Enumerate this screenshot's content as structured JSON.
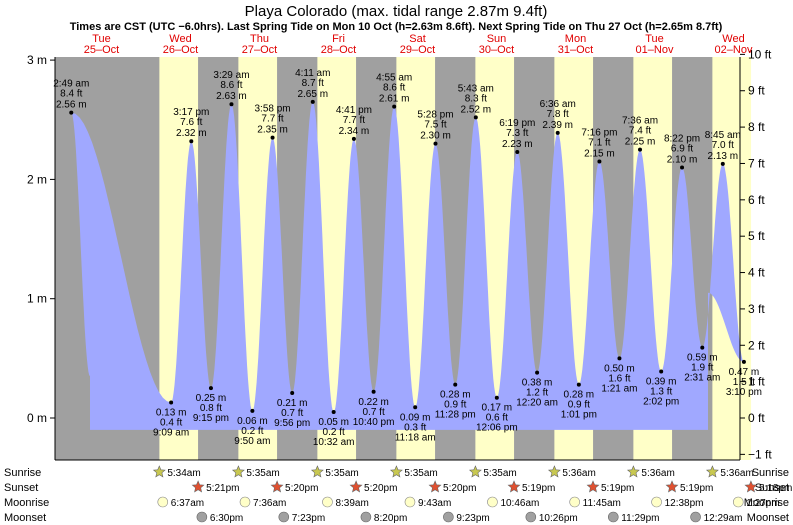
{
  "chart_data": {
    "type": "area",
    "title": "Playa Colorado (max. tidal range 2.87m 9.4ft)",
    "subtitle": "Times are CST (UTC −6.0hrs). Last Spring Tide on Mon 10 Oct (h=2.63m 8.6ft). Next Spring Tide on Thu 27 Oct (h=2.65m 8.7ft)",
    "days": [
      {
        "dow": "Tue",
        "date": "25–Oct"
      },
      {
        "dow": "Wed",
        "date": "26–Oct"
      },
      {
        "dow": "Thu",
        "date": "27–Oct"
      },
      {
        "dow": "Fri",
        "date": "28–Oct"
      },
      {
        "dow": "Sat",
        "date": "29–Oct"
      },
      {
        "dow": "Sun",
        "date": "30–Oct"
      },
      {
        "dow": "Mon",
        "date": "31–Oct"
      },
      {
        "dow": "Tue",
        "date": "01–Nov"
      },
      {
        "dow": "Wed",
        "date": "02–Nov"
      }
    ],
    "y_left_ticks": [
      {
        "v": 0,
        "label": "0 m"
      },
      {
        "v": 1,
        "label": "1 m"
      },
      {
        "v": 2,
        "label": "2 m"
      },
      {
        "v": 3,
        "label": "3 m"
      }
    ],
    "y_right_ticks": [
      {
        "ft": -1,
        "label": "−1 ft"
      },
      {
        "ft": 0,
        "label": "0 ft"
      },
      {
        "ft": 1,
        "label": "1 ft"
      },
      {
        "ft": 2,
        "label": "2 ft"
      },
      {
        "ft": 3,
        "label": "3 ft"
      },
      {
        "ft": 4,
        "label": "4 ft"
      },
      {
        "ft": 5,
        "label": "5 ft"
      },
      {
        "ft": 6,
        "label": "6 ft"
      },
      {
        "ft": 7,
        "label": "7 ft"
      },
      {
        "ft": 8,
        "label": "8 ft"
      },
      {
        "ft": 9,
        "label": "9 ft"
      },
      {
        "ft": 10,
        "label": "10 ft"
      }
    ],
    "ylim_m": [
      -0.35,
      3.05
    ],
    "tides": [
      {
        "type": "high",
        "day": 0,
        "time": "2:49 am",
        "ft": "8.4 ft",
        "m": 2.56,
        "m_label": "2.56 m"
      },
      {
        "type": "low",
        "day": 1,
        "time": "9:09 am",
        "ft": "0.4 ft",
        "m": 0.13,
        "m_label": "0.13 m"
      },
      {
        "type": "high",
        "day": 1,
        "time": "3:17 pm",
        "ft": "7.6 ft",
        "m": 2.32,
        "m_label": "2.32 m"
      },
      {
        "type": "low",
        "day": 1,
        "time": "9:15 pm",
        "ft": "0.8 ft",
        "m": 0.25,
        "m_label": "0.25 m"
      },
      {
        "type": "high",
        "day": 2,
        "time": "3:29 am",
        "ft": "8.6 ft",
        "m": 2.63,
        "m_label": "2.63 m"
      },
      {
        "type": "low",
        "day": 2,
        "time": "9:50 am",
        "ft": "0.2 ft",
        "m": 0.06,
        "m_label": "0.06 m"
      },
      {
        "type": "high",
        "day": 2,
        "time": "3:58 pm",
        "ft": "7.7 ft",
        "m": 2.35,
        "m_label": "2.35 m"
      },
      {
        "type": "low",
        "day": 2,
        "time": "9:56 pm",
        "ft": "0.7 ft",
        "m": 0.21,
        "m_label": "0.21 m"
      },
      {
        "type": "high",
        "day": 3,
        "time": "4:11 am",
        "ft": "8.7 ft",
        "m": 2.65,
        "m_label": "2.65 m"
      },
      {
        "type": "low",
        "day": 3,
        "time": "10:32 am",
        "ft": "0.2 ft",
        "m": 0.05,
        "m_label": "0.05 m"
      },
      {
        "type": "high",
        "day": 3,
        "time": "4:41 pm",
        "ft": "7.7 ft",
        "m": 2.34,
        "m_label": "2.34 m"
      },
      {
        "type": "low",
        "day": 3,
        "time": "10:40 pm",
        "ft": "0.7 ft",
        "m": 0.22,
        "m_label": "0.22 m"
      },
      {
        "type": "high",
        "day": 4,
        "time": "4:55 am",
        "ft": "8.6 ft",
        "m": 2.61,
        "m_label": "2.61 m"
      },
      {
        "type": "low",
        "day": 4,
        "time": "11:18 am",
        "ft": "0.3 ft",
        "m": 0.09,
        "m_label": "0.09 m"
      },
      {
        "type": "high",
        "day": 4,
        "time": "5:28 pm",
        "ft": "7.5 ft",
        "m": 2.3,
        "m_label": "2.30 m"
      },
      {
        "type": "low",
        "day": 4,
        "time": "11:28 pm",
        "ft": "0.9 ft",
        "m": 0.28,
        "m_label": "0.28 m"
      },
      {
        "type": "high",
        "day": 5,
        "time": "5:43 am",
        "ft": "8.3 ft",
        "m": 2.52,
        "m_label": "2.52 m"
      },
      {
        "type": "low",
        "day": 5,
        "time": "12:06 pm",
        "ft": "0.6 ft",
        "m": 0.17,
        "m_label": "0.17 m"
      },
      {
        "type": "high",
        "day": 5,
        "time": "6:19 pm",
        "ft": "7.3 ft",
        "m": 2.23,
        "m_label": "2.23 m"
      },
      {
        "type": "low",
        "day": 6,
        "time": "12:20 am",
        "ft": "1.2 ft",
        "m": 0.38,
        "m_label": "0.38 m"
      },
      {
        "type": "high",
        "day": 6,
        "time": "6:36 am",
        "ft": "7.8 ft",
        "m": 2.39,
        "m_label": "2.39 m"
      },
      {
        "type": "low",
        "day": 6,
        "time": "1:01 pm",
        "ft": "0.9 ft",
        "m": 0.28,
        "m_label": "0.28 m"
      },
      {
        "type": "high",
        "day": 6,
        "time": "7:16 pm",
        "ft": "7.1 ft",
        "m": 2.15,
        "m_label": "2.15 m"
      },
      {
        "type": "low",
        "day": 7,
        "time": "1:21 am",
        "ft": "1.6 ft",
        "m": 0.5,
        "m_label": "0.50 m"
      },
      {
        "type": "high",
        "day": 7,
        "time": "7:36 am",
        "ft": "7.4 ft",
        "m": 2.25,
        "m_label": "2.25 m"
      },
      {
        "type": "low",
        "day": 7,
        "time": "2:02 pm",
        "ft": "1.3 ft",
        "m": 0.39,
        "m_label": "0.39 m"
      },
      {
        "type": "high",
        "day": 7,
        "time": "8:22 pm",
        "ft": "6.9 ft",
        "m": 2.1,
        "m_label": "2.10 m"
      },
      {
        "type": "low",
        "day": 8,
        "time": "2:31 am",
        "ft": "1.9 ft",
        "m": 0.59,
        "m_label": "0.59 m"
      },
      {
        "type": "high",
        "day": 8,
        "time": "8:45 am",
        "ft": "7.0 ft",
        "m": 2.13,
        "m_label": "2.13 m"
      },
      {
        "type": "low",
        "day": 8,
        "time": "3:10 pm",
        "ft": "1.5 ft",
        "m": 0.47,
        "m_label": "0.47 m"
      }
    ],
    "astro_row_labels": [
      "Sunrise",
      "Sunset",
      "Moonrise",
      "Moonset"
    ],
    "sunrise": [
      "5:34am",
      "5:35am",
      "5:35am",
      "5:35am",
      "5:35am",
      "5:36am",
      "5:36am",
      "5:36am"
    ],
    "sunset": [
      "5:21pm",
      "5:20pm",
      "5:20pm",
      "5:20pm",
      "5:19pm",
      "5:19pm",
      "5:19pm",
      "5:18pm"
    ],
    "moonrise": [
      "6:37am",
      "7:36am",
      "8:39am",
      "9:43am",
      "10:46am",
      "11:45am",
      "12:38pm",
      "1:27pm"
    ],
    "moonset": [
      "6:30pm",
      "7:23pm",
      "8:20pm",
      "9:23pm",
      "10:26pm",
      "11:29pm",
      "12:29am"
    ],
    "colors": {
      "night": "#a0a0a0",
      "day": "#ffffc8",
      "tide_fill": "#a0a8ff",
      "day_label": "#e00000",
      "sun_star": "#c8c850",
      "sunset_star": "#e05030",
      "moonrise": "#ffffc8",
      "moonset": "#a0a0a0"
    }
  }
}
